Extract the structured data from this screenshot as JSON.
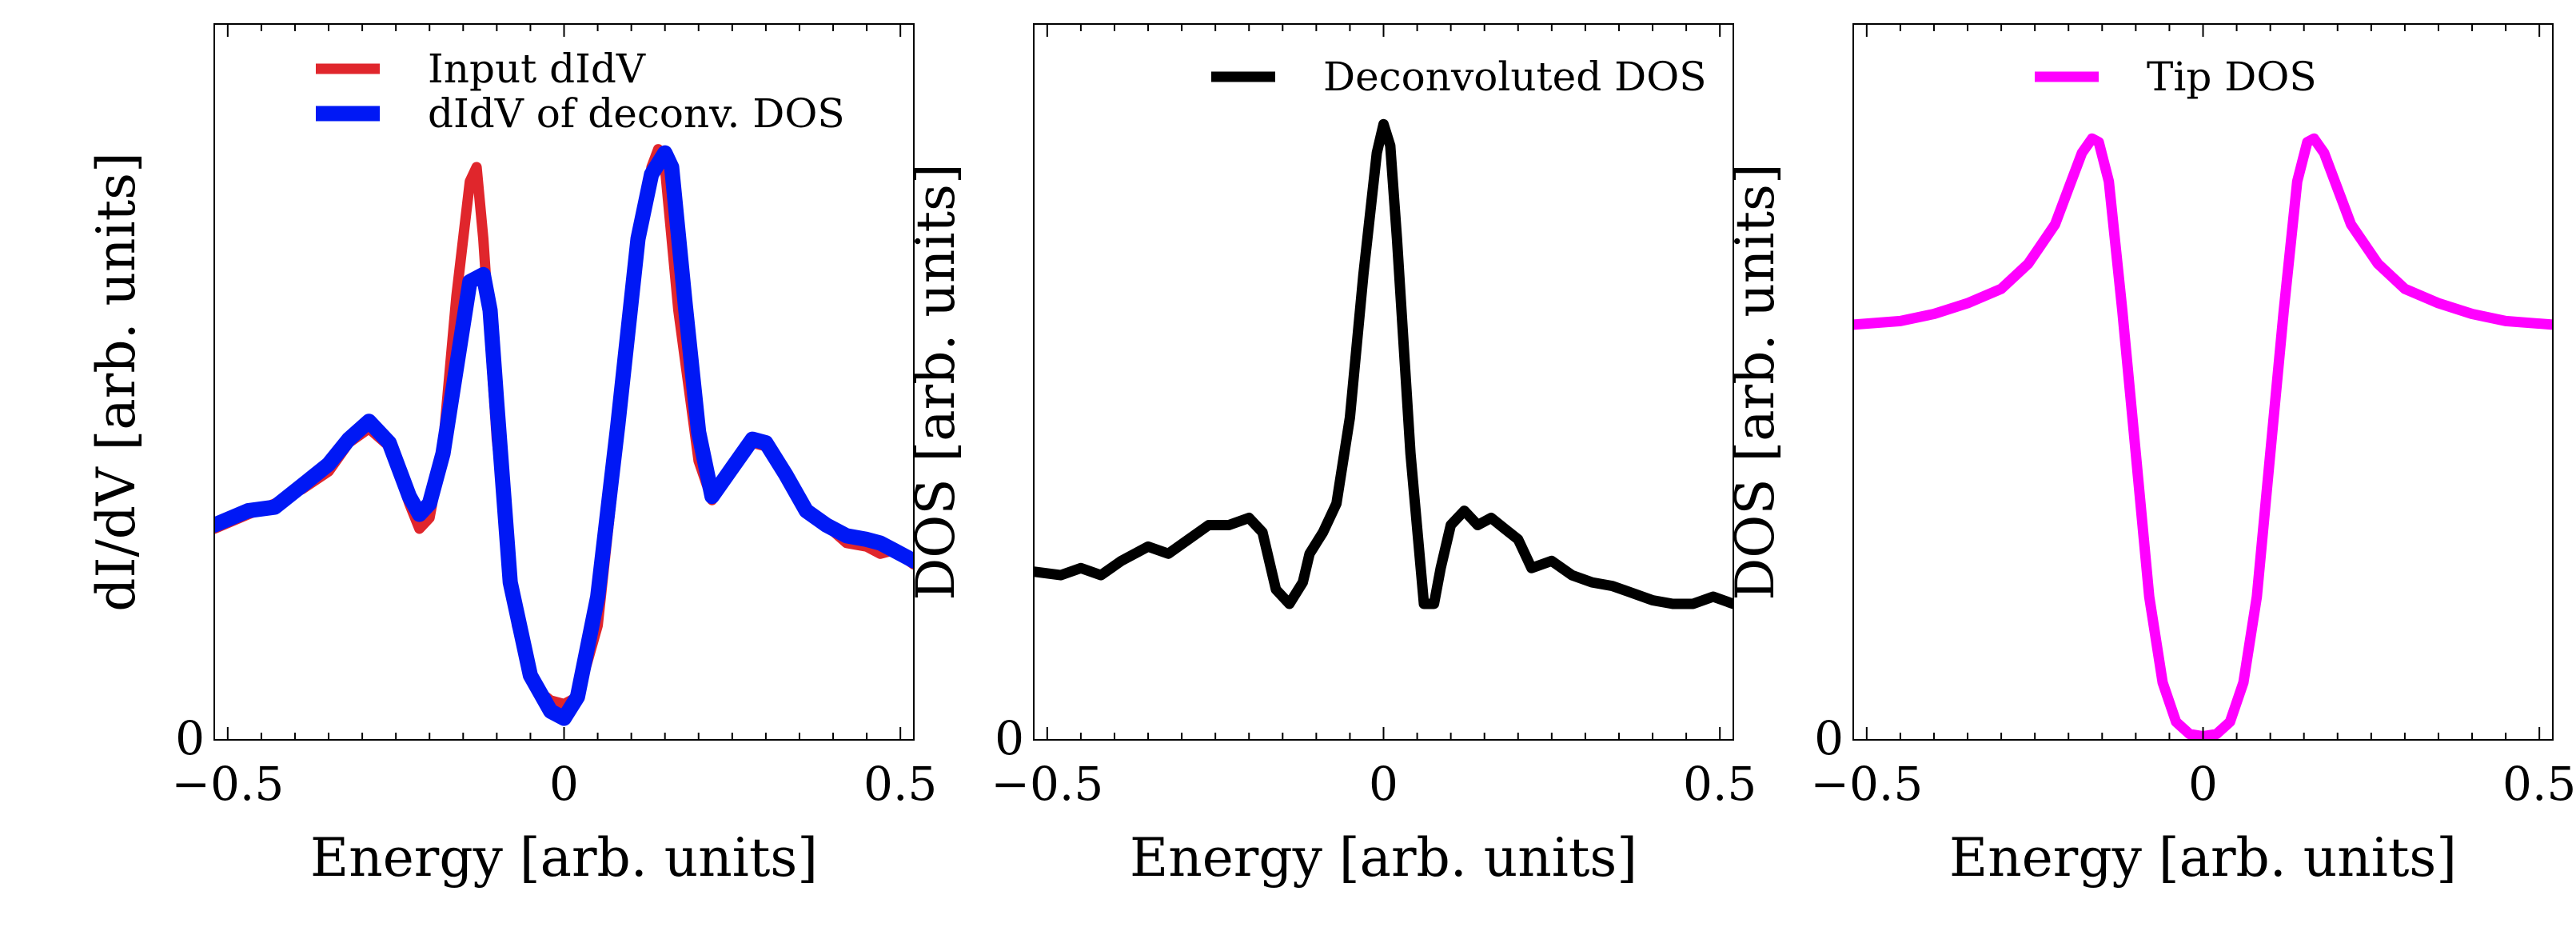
{
  "chart_data": [
    {
      "type": "line",
      "xlabel": "Energy [arb. units]",
      "ylabel": "dI/dV [arb. units]",
      "xlim": [
        -0.52,
        0.52
      ],
      "ylim": [
        0,
        1.0
      ],
      "xticks": [
        -0.5,
        0,
        0.5
      ],
      "xtick_labels": [
        "−0.5",
        "0",
        "0.5"
      ],
      "yticks": [
        0
      ],
      "ytick_labels": [
        "0"
      ],
      "legend_position": "top-center",
      "series": [
        {
          "name": "Input dIdV",
          "color": "#e0262c",
          "x": [
            -0.52,
            -0.47,
            -0.43,
            -0.39,
            -0.35,
            -0.32,
            -0.29,
            -0.26,
            -0.23,
            -0.215,
            -0.2,
            -0.18,
            -0.16,
            -0.14,
            -0.13,
            -0.12,
            -0.1,
            -0.07,
            -0.04,
            -0.02,
            0.0,
            0.02,
            0.05,
            0.08,
            0.11,
            0.13,
            0.14,
            0.15,
            0.17,
            0.2,
            0.22,
            0.25,
            0.28,
            0.3,
            0.33,
            0.36,
            0.39,
            0.42,
            0.45,
            0.47,
            0.49,
            0.52
          ],
          "y": [
            0.295,
            0.315,
            0.33,
            0.35,
            0.375,
            0.415,
            0.435,
            0.41,
            0.33,
            0.295,
            0.31,
            0.41,
            0.62,
            0.78,
            0.8,
            0.7,
            0.42,
            0.16,
            0.07,
            0.055,
            0.05,
            0.06,
            0.16,
            0.42,
            0.68,
            0.8,
            0.825,
            0.8,
            0.6,
            0.39,
            0.335,
            0.38,
            0.415,
            0.41,
            0.37,
            0.32,
            0.3,
            0.275,
            0.27,
            0.26,
            0.265,
            0.245
          ]
        },
        {
          "name": "dIdV of deconv. DOS",
          "color": "#0018f5",
          "x": [
            -0.52,
            -0.47,
            -0.43,
            -0.39,
            -0.35,
            -0.32,
            -0.29,
            -0.26,
            -0.23,
            -0.215,
            -0.2,
            -0.18,
            -0.16,
            -0.14,
            -0.12,
            -0.11,
            -0.1,
            -0.08,
            -0.05,
            -0.02,
            0.0,
            0.02,
            0.05,
            0.08,
            0.11,
            0.13,
            0.15,
            0.16,
            0.18,
            0.2,
            0.22,
            0.25,
            0.28,
            0.3,
            0.33,
            0.36,
            0.39,
            0.42,
            0.45,
            0.47,
            0.49,
            0.52
          ],
          "y": [
            0.3,
            0.32,
            0.325,
            0.355,
            0.385,
            0.42,
            0.445,
            0.415,
            0.34,
            0.315,
            0.33,
            0.4,
            0.52,
            0.64,
            0.65,
            0.6,
            0.47,
            0.22,
            0.09,
            0.04,
            0.03,
            0.06,
            0.2,
            0.44,
            0.7,
            0.79,
            0.82,
            0.8,
            0.61,
            0.43,
            0.34,
            0.38,
            0.42,
            0.415,
            0.37,
            0.32,
            0.3,
            0.285,
            0.28,
            0.275,
            0.265,
            0.25
          ]
        }
      ]
    },
    {
      "type": "line",
      "xlabel": "Energy [arb. units]",
      "ylabel": "DOS [arb. units]",
      "xlim": [
        -0.52,
        0.52
      ],
      "ylim": [
        0,
        1.0
      ],
      "xticks": [
        -0.5,
        0,
        0.5
      ],
      "xtick_labels": [
        "−0.5",
        "0",
        "0.5"
      ],
      "yticks": [
        0
      ],
      "ytick_labels": [
        "0"
      ],
      "legend_position": "top-right",
      "series": [
        {
          "name": "Deconvoluted DOS",
          "color": "#000000",
          "x": [
            -0.52,
            -0.48,
            -0.45,
            -0.42,
            -0.39,
            -0.35,
            -0.32,
            -0.29,
            -0.26,
            -0.23,
            -0.2,
            -0.18,
            -0.16,
            -0.14,
            -0.12,
            -0.11,
            -0.09,
            -0.07,
            -0.05,
            -0.03,
            -0.01,
            0.0,
            0.01,
            0.02,
            0.04,
            0.06,
            0.075,
            0.085,
            0.1,
            0.12,
            0.14,
            0.16,
            0.18,
            0.2,
            0.22,
            0.25,
            0.28,
            0.31,
            0.34,
            0.37,
            0.4,
            0.43,
            0.46,
            0.49,
            0.52
          ],
          "y": [
            0.235,
            0.23,
            0.24,
            0.23,
            0.25,
            0.27,
            0.26,
            0.28,
            0.3,
            0.3,
            0.31,
            0.29,
            0.21,
            0.19,
            0.22,
            0.26,
            0.29,
            0.33,
            0.45,
            0.65,
            0.82,
            0.86,
            0.83,
            0.7,
            0.4,
            0.19,
            0.19,
            0.24,
            0.3,
            0.32,
            0.3,
            0.31,
            0.295,
            0.28,
            0.24,
            0.25,
            0.23,
            0.22,
            0.215,
            0.205,
            0.195,
            0.19,
            0.19,
            0.2,
            0.19
          ]
        }
      ]
    },
    {
      "type": "line",
      "xlabel": "Energy [arb. units]",
      "ylabel": "DOS [arb. units]",
      "xlim": [
        -0.52,
        0.52
      ],
      "ylim": [
        0,
        1.0
      ],
      "xticks": [
        -0.5,
        0,
        0.5
      ],
      "xtick_labels": [
        "−0.5",
        "0",
        "0.5"
      ],
      "yticks": [
        0
      ],
      "ytick_labels": [
        "0"
      ],
      "legend_position": "top-center",
      "series": [
        {
          "name": "Tip DOS",
          "color": "#ff00ff",
          "x": [
            -0.52,
            -0.45,
            -0.4,
            -0.35,
            -0.3,
            -0.26,
            -0.22,
            -0.2,
            -0.18,
            -0.165,
            -0.155,
            -0.14,
            -0.12,
            -0.1,
            -0.08,
            -0.06,
            -0.04,
            -0.02,
            0.0,
            0.02,
            0.04,
            0.06,
            0.08,
            0.1,
            0.12,
            0.14,
            0.155,
            0.165,
            0.18,
            0.2,
            0.22,
            0.26,
            0.3,
            0.35,
            0.4,
            0.45,
            0.52
          ],
          "y": [
            0.58,
            0.585,
            0.595,
            0.61,
            0.63,
            0.665,
            0.72,
            0.77,
            0.82,
            0.84,
            0.835,
            0.78,
            0.6,
            0.4,
            0.2,
            0.08,
            0.025,
            0.008,
            0.005,
            0.008,
            0.025,
            0.08,
            0.2,
            0.4,
            0.6,
            0.78,
            0.835,
            0.84,
            0.82,
            0.77,
            0.72,
            0.665,
            0.63,
            0.61,
            0.595,
            0.585,
            0.58
          ]
        }
      ]
    }
  ]
}
